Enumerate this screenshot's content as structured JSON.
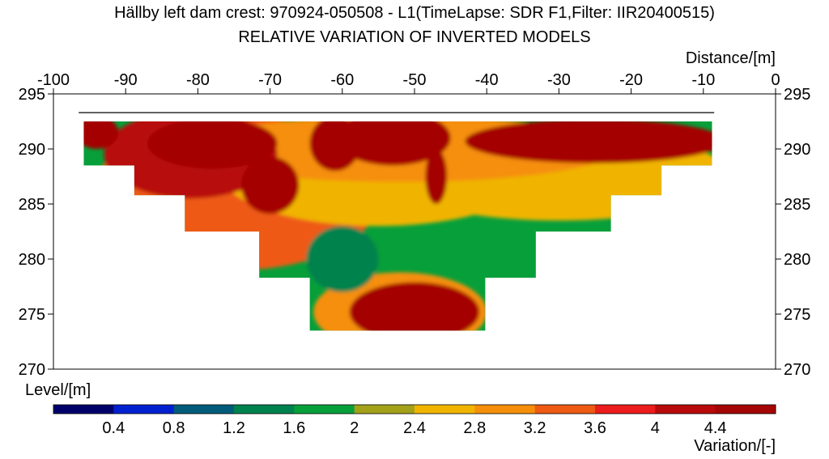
{
  "chart_data": {
    "type": "heatmap",
    "title": "Hällby left dam crest: 970924-050508 - L1(TimeLapse: SDR F1,Filter: IIR20400515)",
    "subtitle": "RELATIVE VARIATION OF INVERTED MODELS",
    "xlabel": "Distance/[m]",
    "ylabel": "Level/[m]",
    "colorbar_label": "Variation/[-]",
    "xlim": [
      -100,
      0
    ],
    "ylim": [
      270,
      295
    ],
    "x_ticks": [
      -100,
      -90,
      -80,
      -70,
      -60,
      -50,
      -40,
      -30,
      -20,
      -10,
      0
    ],
    "y_ticks": [
      295,
      290,
      285,
      280,
      275,
      270
    ],
    "colorbar_ticks": [
      "0.4",
      "0.8",
      "1.2",
      "1.6",
      "2",
      "2.4",
      "2.8",
      "3.2",
      "3.6",
      "4",
      "4.4"
    ],
    "colorbar_colors": [
      "#00006b",
      "#0020d0",
      "#005c7a",
      "#00824e",
      "#079f3a",
      "#a3a11a",
      "#f0b400",
      "#f58f0a",
      "#ee5a14",
      "#ec1c1c",
      "#b80a0a",
      "#a40505"
    ],
    "ground_surface_level": 293.3,
    "ground_surface_x": [
      -96.5,
      -8.5
    ],
    "section_outline": [
      [
        -95.8,
        292.5
      ],
      [
        -8.8,
        292.5
      ],
      [
        -8.8,
        288.5
      ],
      [
        -15.8,
        288.5
      ],
      [
        -15.8,
        285.8
      ],
      [
        -22.8,
        285.8
      ],
      [
        -22.8,
        282.5
      ],
      [
        -33.2,
        282.5
      ],
      [
        -33.2,
        278.3
      ],
      [
        -40.2,
        278.3
      ],
      [
        -40.2,
        273.5
      ],
      [
        -64.5,
        273.5
      ],
      [
        -64.5,
        278.3
      ],
      [
        -71.5,
        278.3
      ],
      [
        -71.5,
        282.5
      ],
      [
        -81.8,
        282.5
      ],
      [
        -81.8,
        285.8
      ],
      [
        -88.8,
        285.8
      ],
      [
        -88.8,
        288.5
      ],
      [
        -95.8,
        288.5
      ]
    ],
    "background_variation": 1.8,
    "variation_blobs": [
      {
        "x": -74.5,
        "y": 286,
        "rx": 20,
        "ry": 7,
        "variation": 3.2
      },
      {
        "x": -55,
        "y": 288,
        "rx": 22,
        "ry": 5,
        "variation": 2.6
      },
      {
        "x": -30,
        "y": 287.5,
        "rx": 24,
        "ry": 4,
        "variation": 2.5
      },
      {
        "x": -52,
        "y": 290,
        "rx": 30,
        "ry": 3,
        "variation": 3.0
      },
      {
        "x": -81,
        "y": 289.5,
        "rx": 12,
        "ry": 4,
        "variation": 4.0
      },
      {
        "x": -70,
        "y": 286.7,
        "rx": 4,
        "ry": 2.6,
        "variation": 4.6
      },
      {
        "x": -78,
        "y": 290.5,
        "rx": 9,
        "ry": 2.3,
        "variation": 4.6
      },
      {
        "x": -25,
        "y": 290.7,
        "rx": 18,
        "ry": 2.0,
        "variation": 4.5
      },
      {
        "x": -53,
        "y": 291,
        "rx": 8,
        "ry": 2.5,
        "variation": 4.5
      },
      {
        "x": -61,
        "y": 290.5,
        "rx": 3.5,
        "ry": 2.5,
        "variation": 4.6
      },
      {
        "x": -47,
        "y": 287.5,
        "rx": 1.5,
        "ry": 2.5,
        "variation": 4.6
      },
      {
        "x": -94,
        "y": 291.5,
        "rx": 3,
        "ry": 1.5,
        "variation": 4.4
      },
      {
        "x": -52,
        "y": 275.2,
        "rx": 12,
        "ry": 3.6,
        "variation": 2.8
      },
      {
        "x": -50,
        "y": 275.2,
        "rx": 9,
        "ry": 2.7,
        "variation": 4.4
      },
      {
        "x": -60,
        "y": 280,
        "rx": 5,
        "ry": 3,
        "variation": 1.3
      }
    ]
  }
}
